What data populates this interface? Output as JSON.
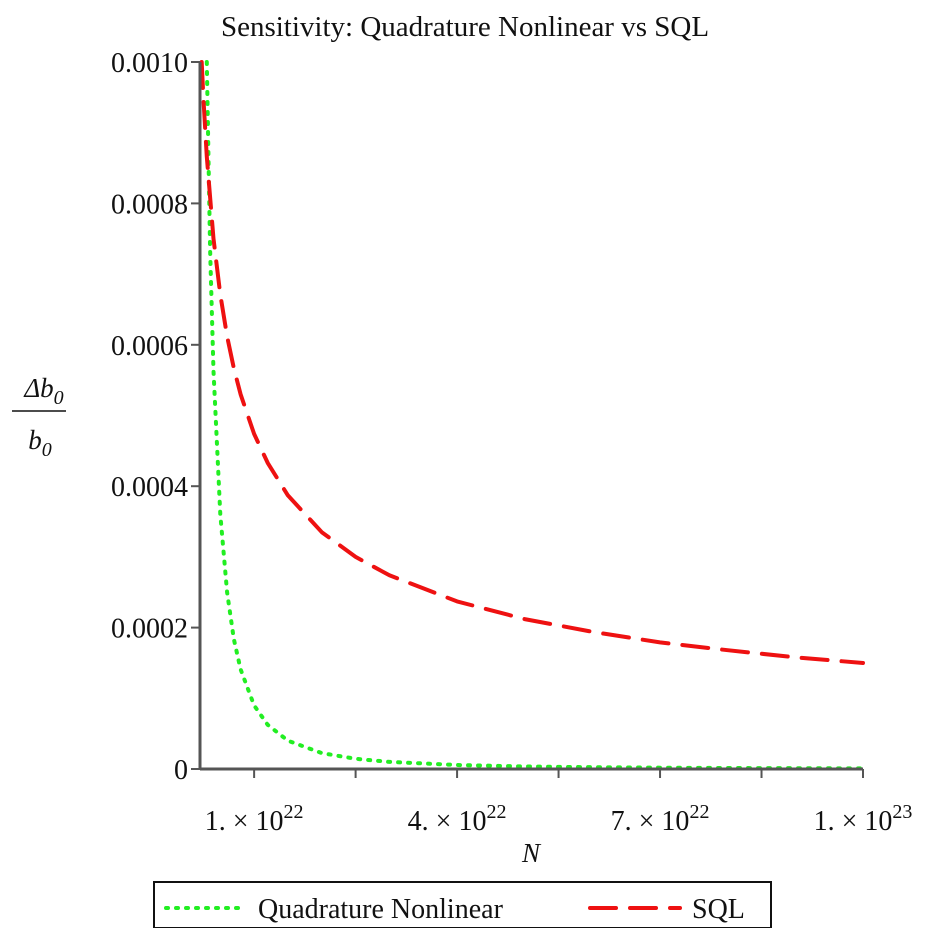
{
  "chart_data": {
    "type": "line",
    "title": "Sensitivity:  Quadrature Nonlinear vs SQL",
    "xlabel": "N",
    "ylabel": {
      "numerator": "Δb",
      "numerator_sub": "0",
      "denominator": "b",
      "denominator_sub": "0"
    },
    "xlim": [
      2e+21,
      1e+23
    ],
    "ylim": [
      0,
      0.001
    ],
    "x_ticks": [
      {
        "value": 1e+22,
        "mantissa": "1. × 10",
        "exponent": "22"
      },
      {
        "value": 4e+22,
        "mantissa": "4. × 10",
        "exponent": "22"
      },
      {
        "value": 7e+22,
        "mantissa": "7. × 10",
        "exponent": "22"
      },
      {
        "value": 1e+23,
        "mantissa": "1. × 10",
        "exponent": "23"
      }
    ],
    "x_minor_ticks": [
      1e+22,
      2.5e+22,
      4e+22,
      5.5e+22,
      7e+22,
      8.5e+22,
      1e+23
    ],
    "y_ticks": [
      {
        "value": 0,
        "label": "0"
      },
      {
        "value": 0.0002,
        "label": "0.0002"
      },
      {
        "value": 0.0004,
        "label": "0.0004"
      },
      {
        "value": 0.0006,
        "label": "0.0006"
      },
      {
        "value": 0.0008,
        "label": "0.0008"
      },
      {
        "value": 0.001,
        "label": "0.0010"
      }
    ],
    "grid": false,
    "legend_position": "bottom",
    "series": [
      {
        "name": "Quadrature Nonlinear",
        "color": "#22ee22",
        "style": "dotted",
        "x": [
          3e+21,
          3.5e+21,
          4e+21,
          5e+21,
          6e+21,
          7e+21,
          8e+21,
          1e+22,
          1.2e+22,
          1.5e+22,
          2e+22,
          2.5e+22,
          3e+22,
          4e+22,
          5e+22,
          6e+22,
          7e+22,
          8e+22,
          9e+22,
          1e+23
        ],
        "y": [
          0.001,
          0.000735,
          0.000563,
          0.00036,
          0.00025,
          0.000184,
          0.000141,
          9e-05,
          6.25e-05,
          4e-05,
          2.25e-05,
          1.44e-05,
          1e-05,
          5.6e-06,
          3.6e-06,
          2.5e-06,
          1.8e-06,
          1.4e-06,
          1.1e-06,
          9e-07
        ]
      },
      {
        "name": "SQL",
        "color": "#ee1111",
        "style": "dashed",
        "x": [
          2.25e+21,
          2.5e+21,
          3e+21,
          4e+21,
          5e+21,
          6e+21,
          7e+21,
          8e+21,
          1e+22,
          1.2e+22,
          1.5e+22,
          2e+22,
          2.5e+22,
          3e+22,
          4e+22,
          5e+22,
          6e+22,
          7e+22,
          8e+22,
          9e+22,
          1e+23
        ],
        "y": [
          0.001,
          0.000949,
          0.000866,
          0.00075,
          0.000671,
          0.000612,
          0.000567,
          0.00053,
          0.000474,
          0.000433,
          0.000387,
          0.000335,
          0.0003,
          0.000274,
          0.000237,
          0.000212,
          0.000194,
          0.000179,
          0.000168,
          0.000158,
          0.00015
        ]
      }
    ]
  }
}
